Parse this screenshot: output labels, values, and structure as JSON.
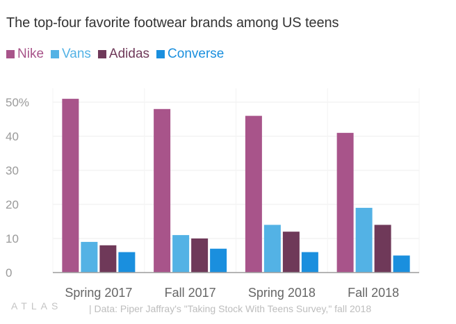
{
  "title": "The top-four favorite footwear brands among US teens",
  "brand": "ATLAS",
  "source": "| Data: Piper Jaffray's \"Taking Stock With Teens Survey,\" fall 2018",
  "chart_data": {
    "type": "bar",
    "title": "The top-four favorite footwear brands among US teens",
    "xlabel": "",
    "ylabel": "",
    "categories": [
      "Spring 2017",
      "Fall 2017",
      "Spring 2018",
      "Fall 2018"
    ],
    "series": [
      {
        "name": "Nike",
        "color": "#a8548a",
        "values": [
          51,
          48,
          46,
          41
        ]
      },
      {
        "name": "Vans",
        "color": "#53b2e5",
        "values": [
          9,
          11,
          14,
          19
        ]
      },
      {
        "name": "Adidas",
        "color": "#6f3959",
        "values": [
          8,
          10,
          12,
          14
        ]
      },
      {
        "name": "Converse",
        "color": "#1a8fde",
        "values": [
          6,
          7,
          6,
          5
        ]
      }
    ],
    "ylim": [
      0,
      55
    ],
    "yticks": [
      0,
      10,
      20,
      30,
      40,
      50
    ],
    "ytick_labels": [
      "0",
      "10",
      "20",
      "30",
      "40",
      "50%"
    ],
    "grid": true,
    "legend_position": "top-left"
  }
}
